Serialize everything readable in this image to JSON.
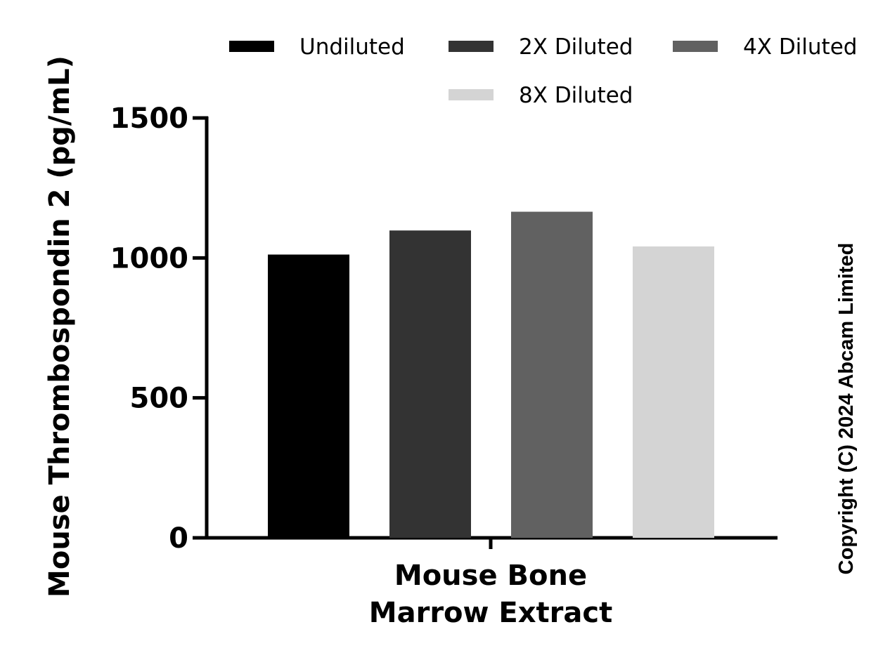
{
  "chart_data": {
    "type": "bar",
    "categories": [
      "Mouse Bone\nMarrow Extract"
    ],
    "category_lines": [
      [
        "Mouse Bone",
        "Marrow Extract"
      ]
    ],
    "series": [
      {
        "name": "Undiluted",
        "values": [
          1012
        ],
        "color": "#000000"
      },
      {
        "name": "2X Diluted",
        "values": [
          1098
        ],
        "color": "#333333"
      },
      {
        "name": "4X Diluted",
        "values": [
          1165
        ],
        "color": "#616161"
      },
      {
        "name": "8X Diluted",
        "values": [
          1041
        ],
        "color": "#d4d4d4"
      }
    ],
    "title": "",
    "xlabel": "",
    "ylabel": "Mouse Thrombospondin 2 (pg/mL)",
    "ylim": [
      0,
      1500
    ],
    "yticks": [
      0,
      500,
      1000,
      1500
    ],
    "grid": false,
    "legend_position": "top"
  },
  "copyright": "Copyright (C) 2024 Abcam Limited"
}
